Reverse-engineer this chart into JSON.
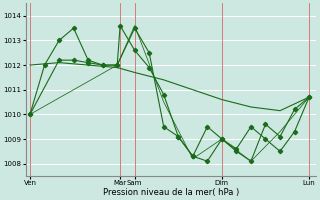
{
  "background_color": "#cce8e0",
  "grid_color": "#ffffff",
  "line_color": "#1a6b1a",
  "vline_color": "#cc6666",
  "xlabel": "Pression niveau de la mer( hPa )",
  "ylim": [
    1007.5,
    1014.5
  ],
  "yticks": [
    1008,
    1009,
    1010,
    1011,
    1012,
    1013,
    1014
  ],
  "xlim": [
    0,
    20
  ],
  "x_ticks": [
    0.3,
    6.5,
    7.5,
    13.5,
    19.5
  ],
  "x_labels": [
    "Ven",
    "Mar",
    "Sam",
    "Dim",
    "Lun"
  ],
  "vlines": [
    0.3,
    6.5,
    7.5,
    13.5,
    19.5
  ],
  "series1_x": [
    0.3,
    1.3,
    2.3,
    3.3,
    4.3,
    5.3,
    6.3,
    6.5,
    7.5,
    8.5,
    9.5,
    10.5,
    11.5,
    12.5,
    13.5,
    14.5,
    15.5,
    16.5,
    17.5,
    18.5,
    19.5
  ],
  "series1_y": [
    1010.0,
    1012.0,
    1013.0,
    1013.5,
    1012.2,
    1012.0,
    1012.0,
    1013.6,
    1012.6,
    1011.9,
    1010.8,
    1009.1,
    1008.3,
    1008.1,
    1009.0,
    1008.5,
    1008.1,
    1009.6,
    1009.1,
    1010.2,
    1010.7
  ],
  "series2_x": [
    0.3,
    2.3,
    4.3,
    6.3,
    7.5,
    9.5,
    11.5,
    13.5,
    15.5,
    17.5,
    19.5
  ],
  "series2_y": [
    1012.0,
    1012.1,
    1012.0,
    1011.9,
    1011.7,
    1011.4,
    1011.0,
    1010.6,
    1010.3,
    1010.15,
    1010.7
  ],
  "series3_x": [
    0.3,
    2.3,
    3.3,
    4.3,
    5.3,
    6.3,
    7.5,
    8.5,
    9.5,
    10.5,
    11.5,
    12.5,
    13.5,
    14.5,
    15.5,
    16.5,
    17.5,
    18.5,
    19.5
  ],
  "series3_y": [
    1010.0,
    1012.2,
    1012.2,
    1012.1,
    1012.0,
    1012.0,
    1013.5,
    1012.5,
    1009.5,
    1009.1,
    1008.3,
    1009.5,
    1009.0,
    1008.6,
    1009.5,
    1009.0,
    1008.5,
    1009.3,
    1010.7
  ],
  "series4_x": [
    0.3,
    6.3,
    7.5,
    9.5,
    11.5,
    13.5,
    15.5,
    17.5,
    19.5
  ],
  "series4_y": [
    1010.0,
    1012.0,
    1013.6,
    1010.5,
    1008.2,
    1009.0,
    1008.1,
    1009.3,
    1010.7
  ]
}
